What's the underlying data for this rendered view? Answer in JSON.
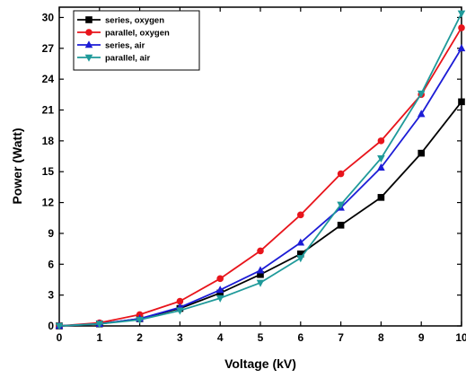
{
  "chart_data": {
    "type": "line",
    "xlabel": "Voltage (kV)",
    "ylabel": "Power (Watt)",
    "xlim": [
      0,
      10
    ],
    "ylim": [
      0,
      31
    ],
    "xticks": [
      0,
      1,
      2,
      3,
      4,
      5,
      6,
      7,
      8,
      9,
      10
    ],
    "yticks": [
      0,
      3,
      6,
      9,
      12,
      15,
      18,
      21,
      24,
      27,
      30
    ],
    "grid": false,
    "legend_position": "top-left",
    "x": [
      0,
      1,
      2,
      3,
      4,
      5,
      6,
      7,
      8,
      9,
      10
    ],
    "series": [
      {
        "name": "series, oxygen",
        "color": "#000000",
        "marker": "square",
        "values": [
          0,
          0.2,
          0.7,
          1.7,
          3.2,
          5.0,
          7.0,
          9.8,
          12.5,
          16.8,
          21.8
        ]
      },
      {
        "name": "parallel, oxygen",
        "color": "#e8141b",
        "marker": "circle",
        "values": [
          0,
          0.3,
          1.1,
          2.4,
          4.6,
          7.3,
          10.8,
          14.8,
          18.0,
          22.5,
          29.0
        ]
      },
      {
        "name": "series, air",
        "color": "#1c1cd6",
        "marker": "triangle-up",
        "values": [
          0,
          0.2,
          0.7,
          1.8,
          3.5,
          5.4,
          8.1,
          11.5,
          15.4,
          20.6,
          27.0
        ]
      },
      {
        "name": "parallel, air",
        "color": "#1f9a9a",
        "marker": "triangle-down",
        "values": [
          0,
          0.2,
          0.6,
          1.5,
          2.7,
          4.2,
          6.6,
          11.8,
          16.3,
          22.6,
          30.4
        ]
      }
    ]
  }
}
